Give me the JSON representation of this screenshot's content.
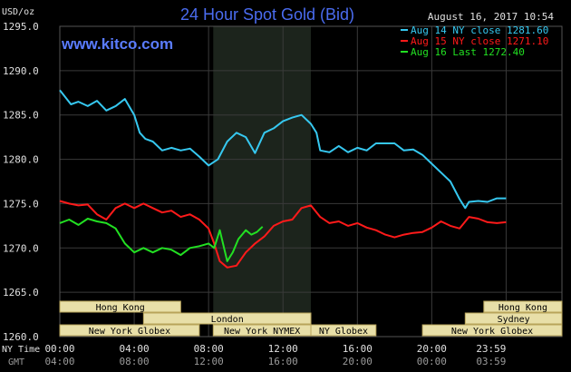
{
  "title": "24 Hour Spot Gold (Bid)",
  "unit_label": "USD/oz",
  "timestamp": "August 16, 2017 10:54",
  "watermark": "www.kitco.com",
  "bottom_labels": {
    "ny_time": "NY Time",
    "gmt": "GMT"
  },
  "colors": {
    "background": "#000000",
    "grid": "#3a3a3a",
    "highlight_band": "#1c241c",
    "title": "#4a6cf0",
    "watermark": "#5a7cff",
    "aug14": "#36c8f0",
    "aug15": "#ff1a1a",
    "aug16": "#22e022",
    "session_bar": "#e8dfa8",
    "session_border": "#b8a45a",
    "axis_text": "#e0e0e0"
  },
  "sessions": [
    {
      "label": "Hong Kong",
      "start": 0.0,
      "end": 6.5,
      "row": 0
    },
    {
      "label": "Hong Kong",
      "start": 22.8,
      "end": 27.0,
      "row": 0
    },
    {
      "label": "London",
      "start": 4.5,
      "end": 13.5,
      "row": 1
    },
    {
      "label": "Sydney",
      "start": 21.8,
      "end": 27.0,
      "row": 1
    },
    {
      "label": "New York Globex",
      "start": 0.0,
      "end": 7.5,
      "row": 2
    },
    {
      "label": "New York NYMEX",
      "start": 8.25,
      "end": 13.5,
      "row": 2
    },
    {
      "label": "NY Globex",
      "start": 13.5,
      "end": 17.0,
      "row": 2
    },
    {
      "label": "New York Globex",
      "start": 19.5,
      "end": 27.0,
      "row": 2
    }
  ],
  "chart_data": {
    "type": "line",
    "title": "24 Hour Spot Gold (Bid)",
    "ylabel": "USD/oz",
    "ylim": [
      1260.0,
      1295.0
    ],
    "y_ticks": [
      "1260.0",
      "1265.0",
      "1270.0",
      "1275.0",
      "1280.0",
      "1285.0",
      "1290.0",
      "1295.0"
    ],
    "xlim": [
      0,
      27
    ],
    "x_ticks_ny": [
      "00:00",
      "04:00",
      "08:00",
      "12:00",
      "16:00",
      "20:00",
      "23:59"
    ],
    "x_ticks_gmt": [
      "04:00",
      "08:00",
      "12:00",
      "16:00",
      "20:00",
      "00:00",
      "03:59"
    ],
    "x_tick_positions": [
      0,
      4,
      8,
      12,
      16,
      20,
      24
    ],
    "highlight_range": [
      8.25,
      13.5
    ],
    "grid": true,
    "legend_position": "top-right",
    "series": [
      {
        "name": "Aug 14 NY close 1281.60",
        "color": "#36c8f0",
        "x": [
          0,
          0.3,
          0.6,
          1.0,
          1.5,
          2.0,
          2.5,
          3.0,
          3.5,
          4.0,
          4.3,
          4.6,
          5.0,
          5.5,
          6.0,
          6.5,
          7.0,
          7.5,
          8.0,
          8.5,
          9.0,
          9.5,
          10.0,
          10.5,
          11.0,
          11.5,
          12.0,
          12.5,
          13.0,
          13.5,
          13.8,
          14.0,
          14.5,
          15.0,
          15.5,
          16.0,
          16.5,
          17.0,
          17.5,
          18.0,
          18.5,
          19.0,
          19.5,
          20.0,
          20.5,
          21.0,
          21.5,
          21.8,
          22.0,
          22.5,
          23.0,
          23.5,
          24.0
        ],
        "y": [
          1287.8,
          1287.0,
          1286.2,
          1286.5,
          1286.0,
          1286.6,
          1285.5,
          1286.0,
          1286.8,
          1285.0,
          1283.0,
          1282.3,
          1282.0,
          1281.0,
          1281.3,
          1281.0,
          1281.2,
          1280.3,
          1279.3,
          1280.0,
          1282.0,
          1283.0,
          1282.5,
          1280.7,
          1283.0,
          1283.5,
          1284.3,
          1284.7,
          1285.0,
          1284.0,
          1283.0,
          1281.0,
          1280.8,
          1281.5,
          1280.8,
          1281.3,
          1281.0,
          1281.8,
          1281.8,
          1281.8,
          1281.0,
          1281.1,
          1280.5,
          1279.5,
          1278.5,
          1277.5,
          1275.5,
          1274.5,
          1275.2,
          1275.3,
          1275.2,
          1275.6,
          1275.6
        ]
      },
      {
        "name": "Aug 15 NY close 1271.10",
        "color": "#ff1a1a",
        "x": [
          0,
          0.5,
          1.0,
          1.5,
          2.0,
          2.5,
          3.0,
          3.5,
          4.0,
          4.5,
          5.0,
          5.5,
          6.0,
          6.5,
          7.0,
          7.5,
          8.0,
          8.3,
          8.6,
          9.0,
          9.5,
          10.0,
          10.5,
          11.0,
          11.5,
          12.0,
          12.5,
          13.0,
          13.5,
          14.0,
          14.5,
          15.0,
          15.5,
          16.0,
          16.5,
          17.0,
          17.5,
          18.0,
          18.5,
          19.0,
          19.5,
          20.0,
          20.5,
          21.0,
          21.5,
          22.0,
          22.5,
          23.0,
          23.5,
          24.0
        ],
        "y": [
          1275.3,
          1275.0,
          1274.8,
          1274.9,
          1273.8,
          1273.2,
          1274.5,
          1275.0,
          1274.5,
          1275.0,
          1274.5,
          1274.0,
          1274.2,
          1273.5,
          1273.8,
          1273.2,
          1272.2,
          1270.5,
          1268.5,
          1267.8,
          1268.0,
          1269.5,
          1270.5,
          1271.3,
          1272.5,
          1273.0,
          1273.2,
          1274.5,
          1274.8,
          1273.5,
          1272.8,
          1273.0,
          1272.5,
          1272.8,
          1272.3,
          1272.0,
          1271.5,
          1271.2,
          1271.5,
          1271.7,
          1271.8,
          1272.3,
          1273.0,
          1272.5,
          1272.2,
          1273.5,
          1273.3,
          1272.9,
          1272.8,
          1272.9
        ]
      },
      {
        "name": "Aug 16 Last 1272.40",
        "color": "#22e022",
        "x": [
          0,
          0.5,
          1.0,
          1.5,
          2.0,
          2.5,
          3.0,
          3.5,
          4.0,
          4.5,
          5.0,
          5.5,
          6.0,
          6.5,
          7.0,
          7.5,
          8.0,
          8.3,
          8.6,
          9.0,
          9.3,
          9.6,
          10.0,
          10.3,
          10.6,
          10.9
        ],
        "y": [
          1272.8,
          1273.2,
          1272.6,
          1273.3,
          1273.0,
          1272.8,
          1272.2,
          1270.5,
          1269.5,
          1270.0,
          1269.5,
          1270.0,
          1269.8,
          1269.2,
          1270.0,
          1270.2,
          1270.5,
          1270.0,
          1272.0,
          1268.5,
          1269.5,
          1271.0,
          1272.0,
          1271.5,
          1271.8,
          1272.4
        ]
      }
    ]
  }
}
